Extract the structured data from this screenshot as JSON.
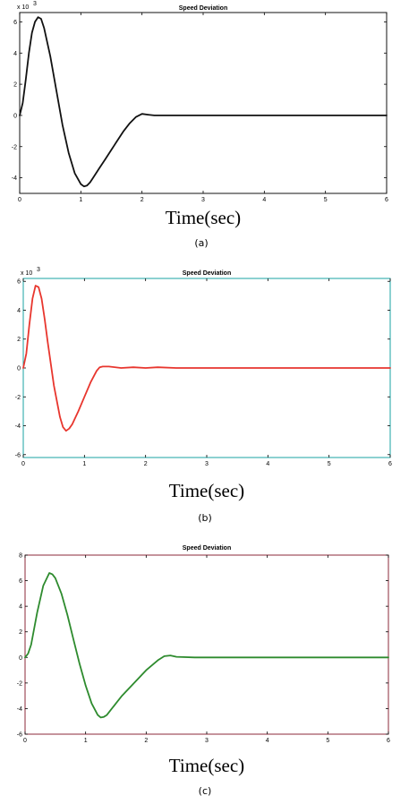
{
  "figure": {
    "panels": [
      {
        "id": "a",
        "caption": "(a)",
        "color": "#111111",
        "frame_color": "#111111",
        "multiplier": "x 10",
        "multiplier_exp": "3"
      },
      {
        "id": "b",
        "caption": "(b)",
        "color": "#e8362e",
        "frame_color": "#1aa3a3",
        "multiplier": "x 10",
        "multiplier_exp": "3"
      },
      {
        "id": "c",
        "caption": "(c)",
        "color": "#2e8b2e",
        "frame_color": "#8b2a3a",
        "multiplier": "",
        "multiplier_exp": ""
      }
    ]
  },
  "chart_data": [
    {
      "type": "line",
      "title": "Speed Deviation",
      "xlabel": "Time(sec)",
      "ylabel": "",
      "xlim": [
        0,
        6
      ],
      "ylim": [
        -5,
        6.6
      ],
      "xticks": [
        0,
        1,
        2,
        3,
        4,
        5,
        6
      ],
      "yticks": [
        -4,
        -2,
        0,
        2,
        4,
        6
      ],
      "series": [
        {
          "x": [
            0,
            0.05,
            0.1,
            0.15,
            0.2,
            0.25,
            0.3,
            0.35,
            0.4,
            0.5,
            0.6,
            0.7,
            0.8,
            0.9,
            1.0,
            1.05,
            1.1,
            1.15,
            1.2,
            1.3,
            1.4,
            1.5,
            1.6,
            1.7,
            1.8,
            1.9,
            2.0,
            2.1,
            2.2,
            2.5,
            3,
            4,
            5,
            6
          ],
          "y": [
            0,
            0.8,
            2.3,
            4.0,
            5.3,
            6.0,
            6.3,
            6.2,
            5.6,
            3.8,
            1.6,
            -0.6,
            -2.4,
            -3.7,
            -4.4,
            -4.55,
            -4.5,
            -4.3,
            -4.0,
            -3.4,
            -2.8,
            -2.2,
            -1.6,
            -1.0,
            -0.5,
            -0.1,
            0.1,
            0.05,
            0,
            0,
            0,
            0,
            0,
            0
          ]
        }
      ]
    },
    {
      "type": "line",
      "title": "Speed Deviation",
      "xlabel": "Time(sec)",
      "ylabel": "",
      "xlim": [
        0,
        6
      ],
      "ylim": [
        -6.2,
        6.2
      ],
      "xticks": [
        0,
        1,
        2,
        3,
        4,
        5,
        6
      ],
      "yticks": [
        -6,
        -4,
        -2,
        0,
        2,
        4,
        6
      ],
      "series": [
        {
          "x": [
            0,
            0.05,
            0.1,
            0.15,
            0.2,
            0.25,
            0.3,
            0.35,
            0.4,
            0.5,
            0.6,
            0.65,
            0.7,
            0.75,
            0.8,
            0.9,
            1.0,
            1.1,
            1.2,
            1.25,
            1.3,
            1.4,
            1.6,
            1.8,
            2.0,
            2.2,
            2.5,
            3,
            4,
            5,
            6
          ],
          "y": [
            0,
            1.0,
            3.0,
            4.8,
            5.7,
            5.6,
            4.8,
            3.4,
            1.8,
            -1.2,
            -3.4,
            -4.1,
            -4.35,
            -4.2,
            -3.9,
            -3.0,
            -2.0,
            -1.0,
            -0.2,
            0.05,
            0.1,
            0.1,
            0,
            0.05,
            0,
            0.05,
            0,
            0,
            0,
            0,
            0
          ]
        }
      ]
    },
    {
      "type": "line",
      "title": "Speed Deviation",
      "xlabel": "Time(sec)",
      "ylabel": "",
      "xlim": [
        0,
        6
      ],
      "ylim": [
        -6,
        8
      ],
      "xticks": [
        0,
        1,
        2,
        3,
        4,
        5,
        6
      ],
      "yticks": [
        -6,
        -4,
        -2,
        0,
        2,
        4,
        6,
        8
      ],
      "series": [
        {
          "x": [
            0,
            0.05,
            0.1,
            0.2,
            0.3,
            0.4,
            0.45,
            0.5,
            0.6,
            0.7,
            0.8,
            0.9,
            1.0,
            1.1,
            1.2,
            1.25,
            1.3,
            1.35,
            1.4,
            1.5,
            1.6,
            1.8,
            2.0,
            2.2,
            2.3,
            2.4,
            2.5,
            2.8,
            3,
            4,
            5,
            6
          ],
          "y": [
            0,
            0.3,
            1.0,
            3.5,
            5.6,
            6.6,
            6.5,
            6.2,
            5.0,
            3.3,
            1.4,
            -0.5,
            -2.2,
            -3.6,
            -4.5,
            -4.7,
            -4.65,
            -4.5,
            -4.2,
            -3.6,
            -3.0,
            -2.0,
            -1.0,
            -0.2,
            0.1,
            0.15,
            0.05,
            0,
            0,
            0,
            0,
            0
          ]
        }
      ]
    }
  ]
}
